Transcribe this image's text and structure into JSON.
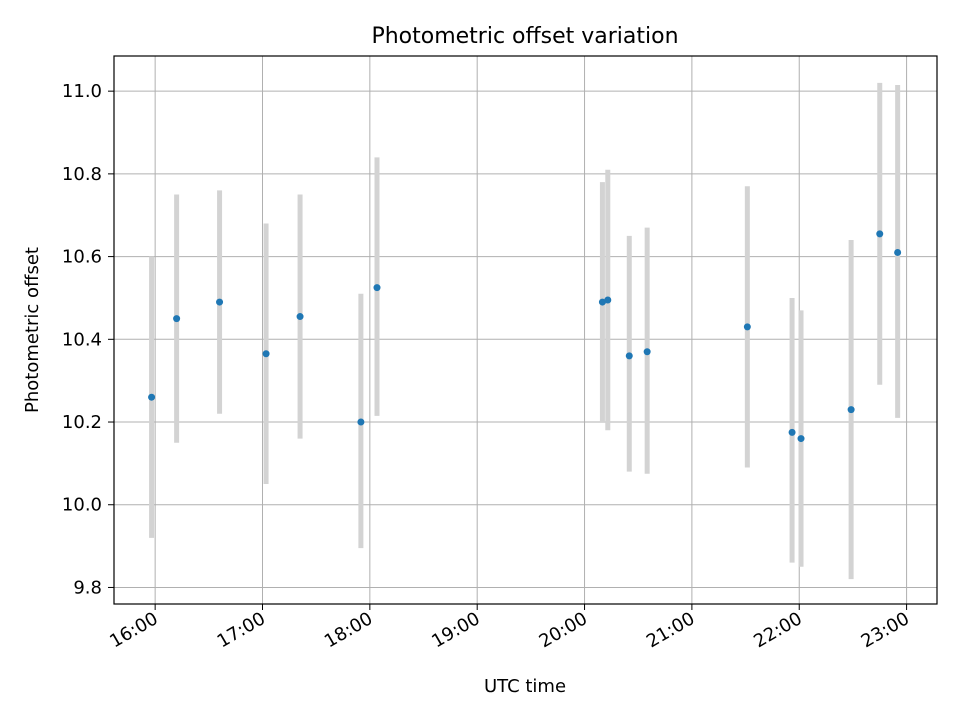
{
  "chart_data": {
    "type": "scatter",
    "title": "Photometric offset variation",
    "xlabel": "UTC time",
    "ylabel": "Photometric offset",
    "x_axis_type": "time",
    "xlim": [
      "15:37",
      "23:17"
    ],
    "ylim": [
      9.76,
      11.085
    ],
    "grid": true,
    "legend": "none",
    "x_ticks": [
      "16:00",
      "17:00",
      "18:00",
      "19:00",
      "20:00",
      "21:00",
      "22:00",
      "23:00"
    ],
    "y_ticks": [
      9.8,
      10.0,
      10.2,
      10.4,
      10.6,
      10.8,
      11.0
    ],
    "y_tick_labels": [
      "9.8",
      "10.0",
      "10.2",
      "10.4",
      "10.6",
      "10.8",
      "11.0"
    ],
    "series": [
      {
        "marker_color": "#1f77b4",
        "errorbar_color": "#d3d3d3",
        "points": [
          {
            "x": "15:58",
            "y": 10.26,
            "ymin": 9.92,
            "ymax": 10.6
          },
          {
            "x": "16:12",
            "y": 10.45,
            "ymin": 10.15,
            "ymax": 10.75
          },
          {
            "x": "16:36",
            "y": 10.49,
            "ymin": 10.22,
            "ymax": 10.76
          },
          {
            "x": "17:02",
            "y": 10.365,
            "ymin": 10.05,
            "ymax": 10.68
          },
          {
            "x": "17:21",
            "y": 10.455,
            "ymin": 10.16,
            "ymax": 10.75
          },
          {
            "x": "17:55",
            "y": 10.2,
            "ymin": 9.895,
            "ymax": 10.51
          },
          {
            "x": "18:04",
            "y": 10.525,
            "ymin": 10.215,
            "ymax": 10.84
          },
          {
            "x": "20:10",
            "y": 10.49,
            "ymin": 10.2,
            "ymax": 10.78
          },
          {
            "x": "20:13",
            "y": 10.495,
            "ymin": 10.18,
            "ymax": 10.81
          },
          {
            "x": "20:25",
            "y": 10.36,
            "ymin": 10.08,
            "ymax": 10.65
          },
          {
            "x": "20:35",
            "y": 10.37,
            "ymin": 10.075,
            "ymax": 10.67
          },
          {
            "x": "21:31",
            "y": 10.43,
            "ymin": 10.09,
            "ymax": 10.77
          },
          {
            "x": "21:56",
            "y": 10.175,
            "ymin": 9.86,
            "ymax": 10.5
          },
          {
            "x": "22:01",
            "y": 10.16,
            "ymin": 9.85,
            "ymax": 10.47
          },
          {
            "x": "22:29",
            "y": 10.23,
            "ymin": 9.82,
            "ymax": 10.64
          },
          {
            "x": "22:45",
            "y": 10.655,
            "ymin": 10.29,
            "ymax": 11.02
          },
          {
            "x": "22:55",
            "y": 10.61,
            "ymin": 10.21,
            "ymax": 11.015
          }
        ]
      }
    ]
  }
}
